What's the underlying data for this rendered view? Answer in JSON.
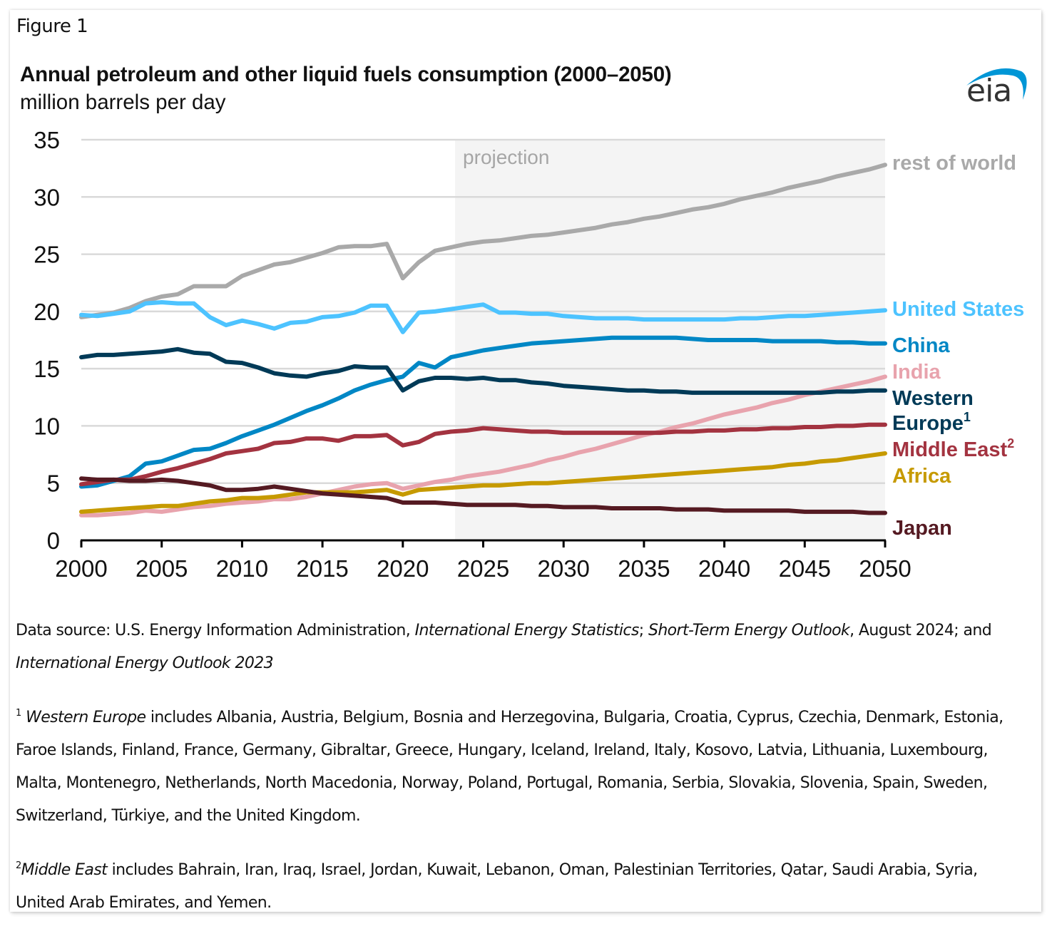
{
  "figure_label": "Figure 1",
  "logo_text": "eia",
  "chart_data": {
    "type": "line",
    "title": "Annual petroleum and other liquid fuels consumption (2000–2050)",
    "subtitle": "million barrels per day",
    "xlabel": "",
    "ylabel": "million barrels per day",
    "xlim": [
      2000,
      2050
    ],
    "ylim": [
      0,
      35
    ],
    "x_ticks": [
      2000,
      2005,
      2010,
      2015,
      2020,
      2025,
      2030,
      2035,
      2040,
      2045,
      2050
    ],
    "x_tick_labels": [
      "2000",
      "2005",
      "2010",
      "2015",
      "2020",
      "2025",
      "2030",
      "2035",
      "2040",
      "2045",
      "2050"
    ],
    "y_ticks": [
      0,
      5,
      10,
      15,
      20,
      25,
      30,
      35
    ],
    "y_tick_labels": [
      "0",
      "5",
      "10",
      "15",
      "20",
      "25",
      "30",
      "35"
    ],
    "grid": "horizontal",
    "legend": "inline-right",
    "projection": {
      "label": "projection",
      "start_year": 2023.25,
      "end_year": 2050
    },
    "x": [
      2000,
      2001,
      2002,
      2003,
      2004,
      2005,
      2006,
      2007,
      2008,
      2009,
      2010,
      2011,
      2012,
      2013,
      2014,
      2015,
      2016,
      2017,
      2018,
      2019,
      2020,
      2021,
      2022,
      2023,
      2024,
      2025,
      2026,
      2027,
      2028,
      2029,
      2030,
      2031,
      2032,
      2033,
      2034,
      2035,
      2036,
      2037,
      2038,
      2039,
      2040,
      2041,
      2042,
      2043,
      2044,
      2045,
      2046,
      2047,
      2048,
      2049,
      2050
    ],
    "series": [
      {
        "name": "rest of world",
        "label": "rest of world",
        "sup": "",
        "color": "#a9a9a9",
        "values": [
          19.5,
          19.7,
          19.9,
          20.3,
          20.9,
          21.3,
          21.5,
          22.2,
          22.2,
          22.2,
          23.1,
          23.6,
          24.1,
          24.3,
          24.7,
          25.1,
          25.6,
          25.7,
          25.7,
          25.9,
          22.9,
          24.3,
          25.3,
          25.6,
          25.9,
          26.1,
          26.2,
          26.4,
          26.6,
          26.7,
          26.9,
          27.1,
          27.3,
          27.6,
          27.8,
          28.1,
          28.3,
          28.6,
          28.9,
          29.1,
          29.4,
          29.8,
          30.1,
          30.4,
          30.8,
          31.1,
          31.4,
          31.8,
          32.1,
          32.4,
          32.8
        ]
      },
      {
        "name": "United States",
        "label": "United States",
        "sup": "",
        "color": "#4dc3ff",
        "values": [
          19.7,
          19.6,
          19.8,
          20.0,
          20.7,
          20.8,
          20.7,
          20.7,
          19.5,
          18.8,
          19.2,
          18.9,
          18.5,
          19.0,
          19.1,
          19.5,
          19.6,
          19.9,
          20.5,
          20.5,
          18.2,
          19.9,
          20.0,
          20.2,
          20.4,
          20.6,
          19.9,
          19.9,
          19.8,
          19.8,
          19.6,
          19.5,
          19.4,
          19.4,
          19.4,
          19.3,
          19.3,
          19.3,
          19.3,
          19.3,
          19.3,
          19.4,
          19.4,
          19.5,
          19.6,
          19.6,
          19.7,
          19.8,
          19.9,
          20.0,
          20.1
        ]
      },
      {
        "name": "China",
        "label": "China",
        "sup": "",
        "color": "#0087c5",
        "values": [
          4.7,
          4.8,
          5.2,
          5.6,
          6.7,
          6.9,
          7.4,
          7.9,
          8.0,
          8.5,
          9.1,
          9.6,
          10.1,
          10.7,
          11.3,
          11.8,
          12.4,
          13.1,
          13.6,
          14.0,
          14.3,
          15.5,
          15.1,
          16.0,
          16.3,
          16.6,
          16.8,
          17.0,
          17.2,
          17.3,
          17.4,
          17.5,
          17.6,
          17.7,
          17.7,
          17.7,
          17.7,
          17.7,
          17.6,
          17.5,
          17.5,
          17.5,
          17.5,
          17.4,
          17.4,
          17.4,
          17.4,
          17.3,
          17.3,
          17.2,
          17.2
        ]
      },
      {
        "name": "India",
        "label": "India",
        "sup": "",
        "color": "#e8a3ad",
        "values": [
          2.2,
          2.2,
          2.3,
          2.4,
          2.6,
          2.5,
          2.7,
          2.9,
          3.0,
          3.2,
          3.3,
          3.4,
          3.6,
          3.6,
          3.8,
          4.1,
          4.4,
          4.7,
          4.9,
          5.0,
          4.5,
          4.8,
          5.1,
          5.3,
          5.6,
          5.8,
          6.0,
          6.3,
          6.6,
          7.0,
          7.3,
          7.7,
          8.0,
          8.4,
          8.8,
          9.2,
          9.5,
          9.9,
          10.2,
          10.6,
          11.0,
          11.3,
          11.6,
          12.0,
          12.3,
          12.7,
          13.0,
          13.3,
          13.6,
          13.9,
          14.3
        ]
      },
      {
        "name": "Western Europe",
        "label": "Western Europe",
        "label_line1": "Western",
        "label_line2": "Europe",
        "sup": "1",
        "color": "#003a57",
        "values": [
          16.0,
          16.2,
          16.2,
          16.3,
          16.4,
          16.5,
          16.7,
          16.4,
          16.3,
          15.6,
          15.5,
          15.1,
          14.6,
          14.4,
          14.3,
          14.6,
          14.8,
          15.2,
          15.1,
          15.1,
          13.1,
          13.9,
          14.2,
          14.2,
          14.1,
          14.2,
          14.0,
          14.0,
          13.8,
          13.7,
          13.5,
          13.4,
          13.3,
          13.2,
          13.1,
          13.1,
          13.0,
          13.0,
          12.9,
          12.9,
          12.9,
          12.9,
          12.9,
          12.9,
          12.9,
          12.9,
          12.9,
          13.0,
          13.0,
          13.1,
          13.1
        ]
      },
      {
        "name": "Middle East",
        "label": "Middle East",
        "sup": "2",
        "color": "#a33340",
        "values": [
          4.9,
          5.1,
          5.3,
          5.3,
          5.6,
          6.0,
          6.3,
          6.7,
          7.1,
          7.6,
          7.8,
          8.0,
          8.5,
          8.6,
          8.9,
          8.9,
          8.7,
          9.1,
          9.1,
          9.2,
          8.3,
          8.6,
          9.3,
          9.5,
          9.6,
          9.8,
          9.7,
          9.6,
          9.5,
          9.5,
          9.4,
          9.4,
          9.4,
          9.4,
          9.4,
          9.4,
          9.4,
          9.5,
          9.5,
          9.6,
          9.6,
          9.7,
          9.7,
          9.8,
          9.8,
          9.9,
          9.9,
          10.0,
          10.0,
          10.1,
          10.1
        ]
      },
      {
        "name": "Africa",
        "label": "Africa",
        "sup": "",
        "color": "#c69a00",
        "values": [
          2.5,
          2.6,
          2.7,
          2.8,
          2.9,
          3.0,
          3.0,
          3.2,
          3.4,
          3.5,
          3.7,
          3.7,
          3.8,
          4.0,
          4.2,
          4.2,
          4.2,
          4.2,
          4.3,
          4.4,
          4.0,
          4.4,
          4.5,
          4.6,
          4.7,
          4.8,
          4.8,
          4.9,
          5.0,
          5.0,
          5.1,
          5.2,
          5.3,
          5.4,
          5.5,
          5.6,
          5.7,
          5.8,
          5.9,
          6.0,
          6.1,
          6.2,
          6.3,
          6.4,
          6.6,
          6.7,
          6.9,
          7.0,
          7.2,
          7.4,
          7.6
        ]
      },
      {
        "name": "Japan",
        "label": "Japan",
        "sup": "",
        "color": "#551a22",
        "values": [
          5.4,
          5.3,
          5.3,
          5.2,
          5.2,
          5.3,
          5.2,
          5.0,
          4.8,
          4.4,
          4.4,
          4.5,
          4.7,
          4.5,
          4.3,
          4.1,
          4.0,
          3.9,
          3.8,
          3.7,
          3.3,
          3.3,
          3.3,
          3.2,
          3.1,
          3.1,
          3.1,
          3.1,
          3.0,
          3.0,
          2.9,
          2.9,
          2.9,
          2.8,
          2.8,
          2.8,
          2.8,
          2.7,
          2.7,
          2.7,
          2.6,
          2.6,
          2.6,
          2.6,
          2.6,
          2.5,
          2.5,
          2.5,
          2.5,
          2.4,
          2.4
        ]
      }
    ]
  },
  "notes": {
    "source_prefix": "Data source: U.S. Energy Information Administration, ",
    "source_ital1": "International Energy Statistics",
    "source_mid1": "; ",
    "source_ital2": "Short-Term Energy Outlook",
    "source_mid2": ", August 2024; and ",
    "source_ital3": "International Energy Outlook 2023",
    "fn1_mark": "1",
    "fn1_term": "Western Europe",
    "fn1_text": " includes Albania, Austria, Belgium, Bosnia and Herzegovina, Bulgaria, Croatia, Cyprus, Czechia, Denmark, Estonia, Faroe Islands, Finland, France, Germany, Gibraltar, Greece, Hungary, Iceland, Ireland, Italy, Kosovo, Latvia, Lithuania, Luxembourg, Malta, Montenegro, Netherlands, North Macedonia, Norway, Poland, Portugal, Romania, Serbia, Slovakia, Slovenia, Spain, Sweden, Switzerland, Türkiye, and the United Kingdom.",
    "fn2_mark": "2",
    "fn2_term": "Middle East",
    "fn2_text": " includes Bahrain, Iran, Iraq, Israel, Jordan, Kuwait, Lebanon, Oman, Palestinian Territories, Qatar, Saudi Arabia, Syria, United Arab Emirates, and Yemen."
  }
}
